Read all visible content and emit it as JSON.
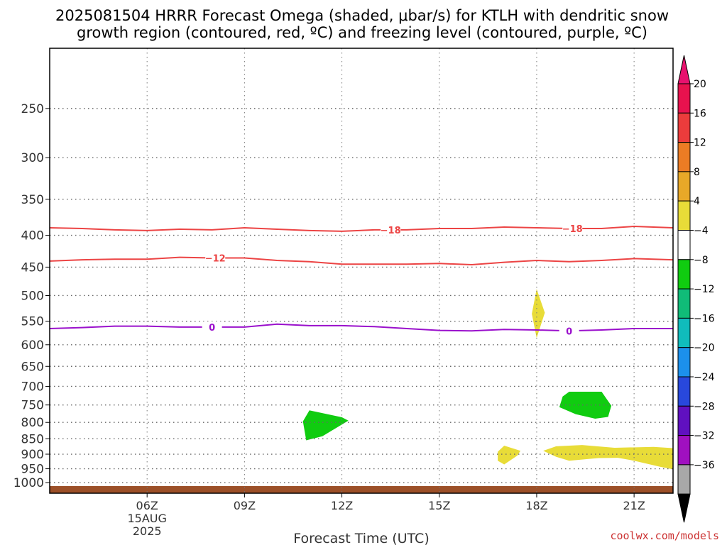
{
  "chart_data": {
    "type": "time-height cross section",
    "title_line1": "2025081504 HRRR Forecast Omega (shaded, μbar/s) for KTLH with dendritic snow",
    "title_line2": "growth region (contoured, red, ºC) and freezing level (contoured, purple, ºC)",
    "xlabel": "Forecast Time (UTC)",
    "credit": "coolwx.com/models",
    "x_range_hours_utc": [
      3,
      22.2
    ],
    "x_ticks": [
      {
        "hour": 6,
        "label": "06Z",
        "sub1": "15AUG",
        "sub2": "2025"
      },
      {
        "hour": 9,
        "label": "09Z",
        "sub1": "",
        "sub2": ""
      },
      {
        "hour": 12,
        "label": "12Z",
        "sub1": "",
        "sub2": ""
      },
      {
        "hour": 15,
        "label": "15Z",
        "sub1": "",
        "sub2": ""
      },
      {
        "hour": 18,
        "label": "18Z",
        "sub1": "",
        "sub2": ""
      },
      {
        "hour": 21,
        "label": "21Z",
        "sub1": "",
        "sub2": ""
      }
    ],
    "y_axis": "pressure (hPa), decreasing upward",
    "y_range_hpa": [
      1040,
      200
    ],
    "y_ticks": [
      250,
      300,
      350,
      400,
      450,
      500,
      550,
      600,
      650,
      700,
      750,
      800,
      850,
      900,
      950,
      1000
    ],
    "grid": true,
    "ground_color": "#9c5028",
    "ground_top_hpa": 1013,
    "colorbar": {
      "levels": [
        20,
        16,
        12,
        8,
        4,
        -4,
        -8,
        -12,
        -16,
        -20,
        -24,
        -28,
        -32,
        -36
      ],
      "colors": [
        "#e8124e",
        "#ec3c3c",
        "#ec7c24",
        "#e8a828",
        "#e8dc38",
        "#ffffff",
        "#10cc10",
        "#10bc78",
        "#10bcbc",
        "#1c90ec",
        "#2848dc",
        "#6010c0",
        "#a010c0",
        "#a8a8a8"
      ],
      "over_color": "#e8126e",
      "under_color": "#000000"
    },
    "contours": [
      {
        "name": "-18",
        "label": "−18",
        "color": "#ec4444",
        "points": [
          [
            3,
            389
          ],
          [
            4,
            390
          ],
          [
            5,
            392
          ],
          [
            6,
            393
          ],
          [
            7,
            391
          ],
          [
            8,
            392
          ],
          [
            9,
            389
          ],
          [
            10,
            391
          ],
          [
            11,
            393
          ],
          [
            12,
            394
          ],
          [
            13,
            392
          ],
          [
            14,
            392
          ],
          [
            15,
            390
          ],
          [
            16,
            390
          ],
          [
            17,
            388
          ],
          [
            18,
            389
          ],
          [
            19,
            390
          ],
          [
            20,
            390
          ],
          [
            21,
            387
          ],
          [
            22.2,
            389
          ]
        ],
        "label_hours": [
          13.5,
          19.1
        ]
      },
      {
        "name": "-12",
        "label": "−12",
        "color": "#ec4444",
        "points": [
          [
            3,
            440
          ],
          [
            4,
            438
          ],
          [
            5,
            437
          ],
          [
            6,
            437
          ],
          [
            7,
            434
          ],
          [
            8,
            435
          ],
          [
            9,
            435
          ],
          [
            10,
            439
          ],
          [
            11,
            441
          ],
          [
            12,
            445
          ],
          [
            13,
            445
          ],
          [
            14,
            445
          ],
          [
            15,
            444
          ],
          [
            16,
            446
          ],
          [
            17,
            442
          ],
          [
            18,
            439
          ],
          [
            19,
            441
          ],
          [
            20,
            439
          ],
          [
            21,
            436
          ],
          [
            22.2,
            438
          ]
        ],
        "label_hours": [
          8.1
        ]
      },
      {
        "name": "0",
        "label": "0",
        "color": "#9a10cc",
        "points": [
          [
            3,
            565
          ],
          [
            4,
            563
          ],
          [
            5,
            560
          ],
          [
            6,
            560
          ],
          [
            7,
            562
          ],
          [
            8,
            562
          ],
          [
            9,
            562
          ],
          [
            10,
            556
          ],
          [
            11,
            559
          ],
          [
            12,
            559
          ],
          [
            13,
            561
          ],
          [
            14,
            565
          ],
          [
            15,
            569
          ],
          [
            16,
            570
          ],
          [
            17,
            567
          ],
          [
            18,
            568
          ],
          [
            19,
            570
          ],
          [
            20,
            568
          ],
          [
            21,
            565
          ],
          [
            22.2,
            565
          ]
        ],
        "label_hours": [
          8.0,
          19.0
        ]
      }
    ],
    "shaded_regions": [
      {
        "name": "green-800",
        "value_range": [
          -8,
          -4
        ],
        "color": "#10cc10",
        "points": [
          [
            11,
            765
          ],
          [
            12,
            785
          ],
          [
            12.2,
            795
          ],
          [
            11.4,
            842
          ],
          [
            10.9,
            855
          ],
          [
            10.8,
            797
          ]
        ]
      },
      {
        "name": "green-750",
        "value_range": [
          -8,
          -4
        ],
        "color": "#10cc10",
        "points": [
          [
            18.8,
            727
          ],
          [
            19,
            714
          ],
          [
            20,
            714
          ],
          [
            20.3,
            752
          ],
          [
            20.2,
            784
          ],
          [
            19.8,
            789
          ],
          [
            19.2,
            776
          ],
          [
            18.7,
            756
          ]
        ]
      },
      {
        "name": "yellow-550",
        "value_range": [
          4,
          8
        ],
        "color": "#e8dc38",
        "points": [
          [
            18,
            488
          ],
          [
            18.25,
            533
          ],
          [
            18,
            585
          ],
          [
            17.85,
            535
          ]
        ]
      },
      {
        "name": "yellow-900a",
        "value_range": [
          4,
          8
        ],
        "color": "#e8dc38",
        "points": [
          [
            16.8,
            892
          ],
          [
            17,
            872
          ],
          [
            17.5,
            889
          ],
          [
            17.4,
            905
          ],
          [
            17,
            935
          ],
          [
            16.8,
            922
          ]
        ]
      },
      {
        "name": "yellow-900b",
        "value_range": [
          4,
          8
        ],
        "color": "#e8dc38",
        "points": [
          [
            18.2,
            889
          ],
          [
            18.6,
            874
          ],
          [
            19.4,
            870
          ],
          [
            20.4,
            879
          ],
          [
            21.6,
            876
          ],
          [
            22.2,
            880
          ],
          [
            22.2,
            952
          ],
          [
            21.8,
            943
          ],
          [
            21,
            922
          ],
          [
            20.5,
            912
          ],
          [
            19.9,
            913
          ],
          [
            19,
            922
          ],
          [
            18.6,
            909
          ]
        ]
      }
    ]
  }
}
